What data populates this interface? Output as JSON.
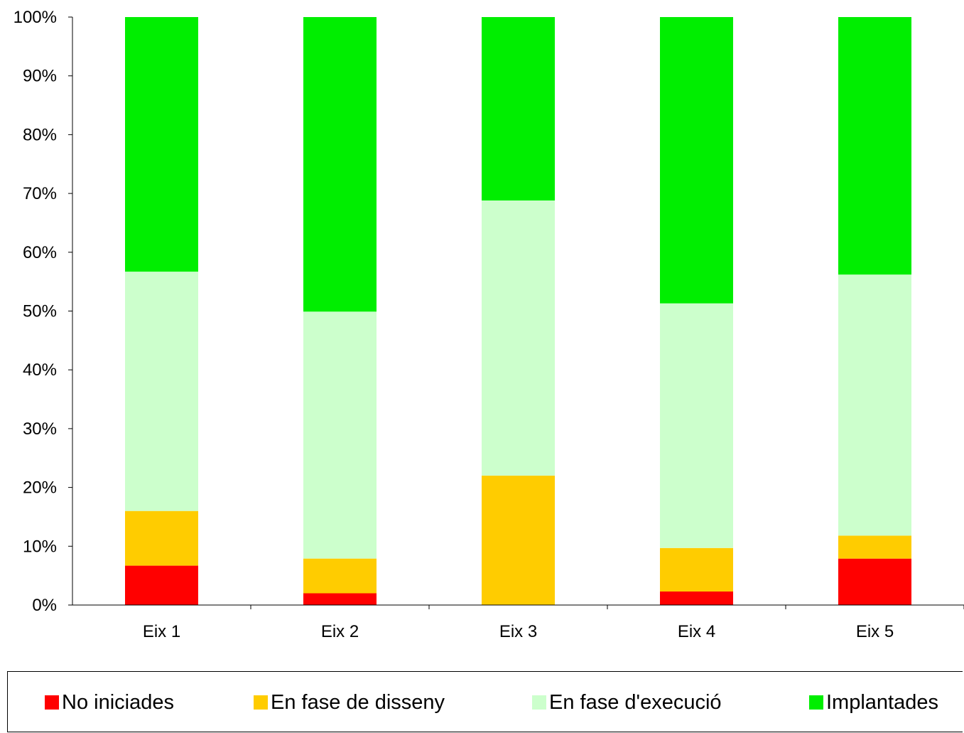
{
  "chart_data": {
    "type": "bar",
    "stacked": true,
    "percent_stacked": true,
    "categories": [
      "Eix 1",
      "Eix 2",
      "Eix 3",
      "Eix 4",
      "Eix 5"
    ],
    "series": [
      {
        "name": "No iniciades",
        "color": "#ff0000",
        "values": [
          6.7,
          2.0,
          0.0,
          2.3,
          7.9
        ]
      },
      {
        "name": "En fase de disseny",
        "color": "#ffcc00",
        "values": [
          9.3,
          5.9,
          22.0,
          7.4,
          3.9
        ]
      },
      {
        "name": "En fase d'execució",
        "color": "#ccffcc",
        "values": [
          40.7,
          42.0,
          46.8,
          41.6,
          44.4
        ]
      },
      {
        "name": "Implantades",
        "color": "#00ee00",
        "values": [
          43.3,
          50.1,
          31.2,
          48.7,
          43.8
        ]
      }
    ],
    "y_ticks": [
      "0%",
      "10%",
      "20%",
      "30%",
      "40%",
      "50%",
      "60%",
      "70%",
      "80%",
      "90%",
      "100%"
    ],
    "ylim": [
      0,
      100
    ],
    "grid": false,
    "legend_position": "bottom",
    "title": "",
    "xlabel": "",
    "ylabel": ""
  }
}
